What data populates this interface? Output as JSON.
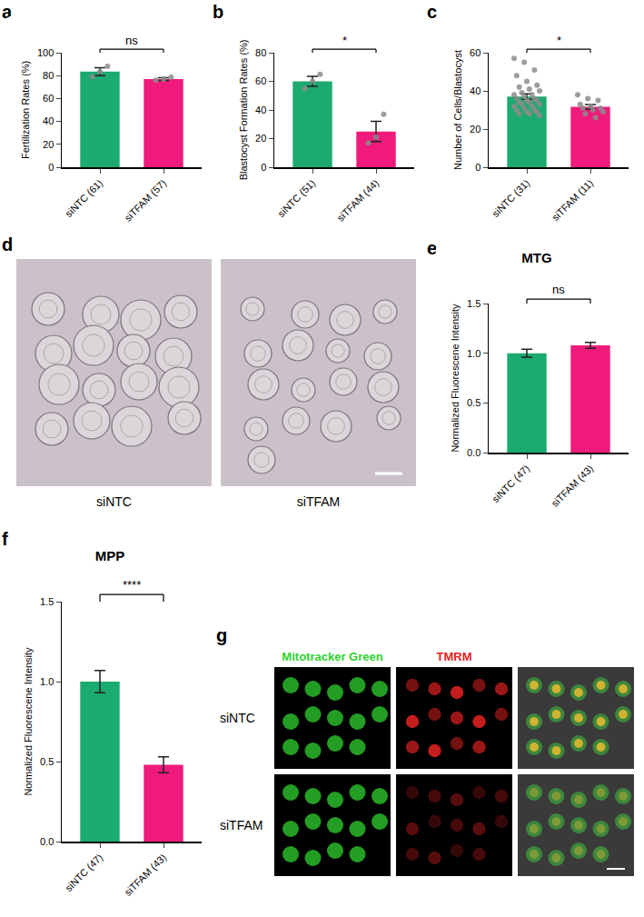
{
  "chart_data": [
    {
      "panel_label": "a",
      "type": "bar",
      "y_label": "Fertilization Rates (%)",
      "categories": [
        "siNTC (61)",
        "siTFAM (57)"
      ],
      "values": [
        83.5,
        77
      ],
      "errors": [
        3.5,
        1.2
      ],
      "points": [
        [
          79,
          83.5,
          88
        ],
        [
          76,
          77,
          78.5
        ]
      ],
      "colors": [
        "#1baa6f",
        "#ef1a7b"
      ],
      "ylim": [
        0,
        100
      ],
      "yticks": [
        0,
        20,
        40,
        60,
        80,
        100
      ],
      "significance": "ns"
    },
    {
      "panel_label": "b",
      "type": "bar",
      "y_label": "Blastocyst Formation Rates (%)",
      "categories": [
        "siNTC (51)",
        "siTFAM (44)"
      ],
      "values": [
        60,
        25
      ],
      "errors": [
        3.5,
        7
      ],
      "points": [
        [
          55,
          60,
          65
        ],
        [
          17,
          21,
          37
        ]
      ],
      "colors": [
        "#1baa6f",
        "#ef1a7b"
      ],
      "ylim": [
        0,
        80
      ],
      "yticks": [
        0,
        20,
        40,
        60,
        80
      ],
      "significance": "*"
    },
    {
      "panel_label": "c",
      "type": "bar",
      "y_label": "Number of Cells/Blastocyst",
      "categories": [
        "siNTC (31)",
        "siTFAM (11)"
      ],
      "values": [
        37,
        31.7
      ],
      "errors": [
        1.4,
        1.2
      ],
      "points": [
        [
          57,
          55,
          51,
          48,
          45,
          43,
          42,
          41,
          40,
          39,
          38,
          38,
          37,
          36,
          36,
          35,
          35,
          34,
          34,
          33,
          33,
          32,
          32,
          31,
          30,
          30,
          29,
          29,
          28,
          28,
          27
        ],
        [
          38,
          36,
          35,
          33,
          32,
          31,
          31,
          30,
          29,
          28,
          26
        ]
      ],
      "colors": [
        "#1baa6f",
        "#ef1a7b"
      ],
      "ylim": [
        0,
        60
      ],
      "yticks": [
        0,
        20,
        40,
        60
      ],
      "significance": "*"
    },
    {
      "panel_label": "e",
      "type": "bar",
      "title": "MTG",
      "y_label": "Normalized Fluorescene Intensity",
      "categories": [
        "siNTC (47)",
        "siTFAM (43)"
      ],
      "values": [
        1.0,
        1.08
      ],
      "errors": [
        0.04,
        0.03
      ],
      "colors": [
        "#1baa6f",
        "#ef1a7b"
      ],
      "ylim": [
        0,
        1.5
      ],
      "yticks": [
        {
          "value": 0,
          "label": "0.0"
        },
        {
          "value": 0.5,
          "label": "0.5"
        },
        {
          "value": 1,
          "label": "1.0"
        },
        {
          "value": 1.5,
          "label": "1.5"
        }
      ],
      "significance": "ns"
    },
    {
      "panel_label": "f",
      "type": "bar",
      "title": "MPP",
      "y_label": "Normalized Fluorescene Intensity",
      "categories": [
        "siNTC (47)",
        "siTFAM (43)"
      ],
      "values": [
        1.0,
        0.48
      ],
      "errors": [
        0.07,
        0.05
      ],
      "colors": [
        "#1baa6f",
        "#ef1a7b"
      ],
      "ylim": [
        0,
        1.5
      ],
      "yticks": [
        {
          "value": 0,
          "label": "0.0"
        },
        {
          "value": 0.5,
          "label": "0.5"
        },
        {
          "value": 1,
          "label": "1.0"
        },
        {
          "value": 1.5,
          "label": "1.5"
        }
      ],
      "significance": "****"
    }
  ],
  "images": [
    {
      "panel_label": "d",
      "labels": [
        "siNTC",
        "siTFAM"
      ]
    },
    {
      "panel_label": "g",
      "columns": [
        "Mitotracker Green",
        "TMRM"
      ],
      "column_colors": [
        "#2fd12f",
        "#e52222"
      ],
      "rows": [
        "siNTC",
        "siTFAM"
      ]
    }
  ]
}
